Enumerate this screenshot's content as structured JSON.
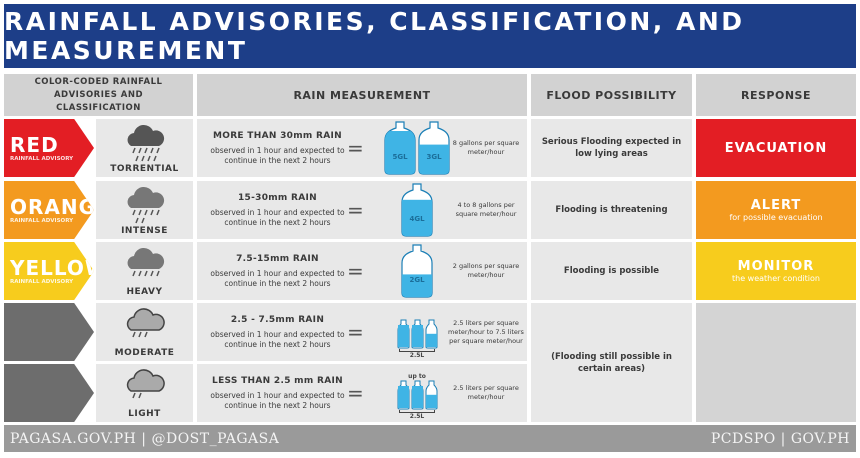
{
  "title": "RAINFALL ADVISORIES, CLASSIFICATION, AND MEASUREMENT",
  "headers": {
    "classification": "COLOR-CODED RAINFALL ADVISORIES AND CLASSIFICATION",
    "measurement": "RAIN MEASUREMENT",
    "flood": "FLOOD POSSIBILITY",
    "response": "RESPONSE"
  },
  "rows": [
    {
      "advisory": "RED",
      "advisory_sub": "RAINFALL ADVISORY",
      "color": "#e31e24",
      "class": "TORRENTIAL",
      "amount": "MORE THAN 30mm RAIN",
      "observed": "observed in 1 hour and expected to continue in the next 2 hours",
      "equals": "=",
      "jugs": [
        "5GL",
        "3GL"
      ],
      "note": "8 gallons per square meter/hour",
      "flood": "Serious Flooding expected in low lying areas",
      "response": "EVACUATION",
      "response_sub": ""
    },
    {
      "advisory": "ORANGE",
      "advisory_sub": "RAINFALL ADVISORY",
      "color": "#f39a1f",
      "class": "INTENSE",
      "amount": "15-30mm RAIN",
      "observed": "observed in 1 hour and expected to continue in the next 2 hours",
      "equals": "=",
      "jugs": [
        "4GL"
      ],
      "note": "4 to 8 gallons per square meter/hour",
      "flood": "Flooding is threatening",
      "response": "ALERT",
      "response_sub": "for possible evacuation"
    },
    {
      "advisory": "YELLOW",
      "advisory_sub": "RAINFALL ADVISORY",
      "color": "#f7cc1d",
      "class": "HEAVY",
      "amount": "7.5-15mm RAIN",
      "observed": "observed in 1 hour and expected to continue in the next 2 hours",
      "equals": "=",
      "jugs": [
        "2GL"
      ],
      "note": "2 gallons per square meter/hour",
      "flood": "Flooding is possible",
      "response": "MONITOR",
      "response_sub": "the weather condition"
    },
    {
      "advisory": "",
      "advisory_sub": "",
      "color": "#6d6d6d",
      "class": "MODERATE",
      "amount": "2.5 - 7.5mm RAIN",
      "observed": "observed in 1 hour and expected to continue in the next 2 hours",
      "equals": "=",
      "bottles_label": "2.5L",
      "bottles_top": "",
      "note": "2.5 liters per square meter/hour to 7.5 liters per square meter/hour"
    },
    {
      "advisory": "",
      "advisory_sub": "",
      "color": "#6d6d6d",
      "class": "LIGHT",
      "amount": "LESS THAN 2.5 mm RAIN",
      "observed": "observed in 1 hour and expected to continue in the next 2 hours",
      "equals": "=",
      "bottles_label": "2.5L",
      "bottles_top": "up to",
      "note": "2.5 liters per square meter/hour"
    }
  ],
  "flood_merged": "(Flooding still possible in certain areas)",
  "footer": {
    "left": "PAGASA.GOV.PH | @DOST_PAGASA",
    "right": "PCDSPO | GOV.PH"
  }
}
